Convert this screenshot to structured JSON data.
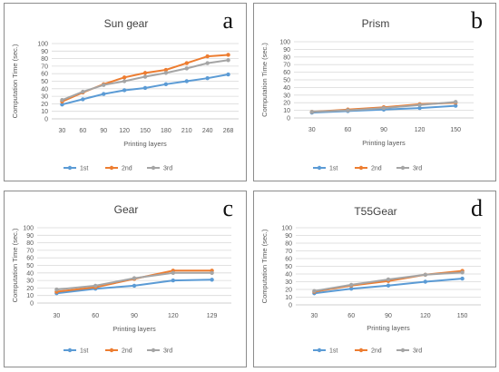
{
  "chart_data": [
    {
      "type": "line",
      "panel_letter": "a",
      "title": "Sun gear",
      "xlabel": "Printing layers",
      "ylabel": "Computation Time (sec.)",
      "ylim": [
        0,
        100
      ],
      "yticks": [
        "0",
        "10",
        "20",
        "30",
        "40",
        "50",
        "60",
        "70",
        "80",
        "90",
        "100"
      ],
      "categories": [
        "30",
        "60",
        "90",
        "120",
        "150",
        "180",
        "210",
        "240",
        "268"
      ],
      "series": [
        {
          "name": "1st",
          "values": [
            19,
            26,
            33,
            38,
            41,
            46,
            50,
            54,
            59
          ]
        },
        {
          "name": "2nd",
          "values": [
            23,
            35,
            46,
            55,
            61,
            65,
            74,
            83,
            85
          ]
        },
        {
          "name": "3rd",
          "values": [
            25,
            36,
            45,
            50,
            56,
            61,
            67,
            74,
            78
          ]
        }
      ]
    },
    {
      "type": "line",
      "panel_letter": "b",
      "title": "Prism",
      "xlabel": "Printing layers",
      "ylabel": "Computation Time (sec.)",
      "ylim": [
        0,
        100
      ],
      "yticks": [
        "0",
        "10",
        "20",
        "30",
        "40",
        "50",
        "60",
        "70",
        "80",
        "90",
        "100"
      ],
      "categories": [
        "30",
        "60",
        "90",
        "120",
        "150"
      ],
      "series": [
        {
          "name": "1st",
          "values": [
            7,
            9,
            11,
            13,
            16
          ]
        },
        {
          "name": "2nd",
          "values": [
            8,
            11,
            14,
            18,
            20
          ]
        },
        {
          "name": "3rd",
          "values": [
            8,
            10,
            13,
            17,
            21
          ]
        }
      ]
    },
    {
      "type": "line",
      "panel_letter": "c",
      "title": "Gear",
      "xlabel": "Printing layers",
      "ylabel": "Computation Time (sec.)",
      "ylim": [
        0,
        100
      ],
      "yticks": [
        "0",
        "10",
        "20",
        "30",
        "40",
        "50",
        "60",
        "70",
        "80",
        "90",
        "100"
      ],
      "categories": [
        "30",
        "60",
        "90",
        "120",
        "129"
      ],
      "series": [
        {
          "name": "1st",
          "values": [
            13,
            19,
            23,
            30,
            31
          ]
        },
        {
          "name": "2nd",
          "values": [
            15,
            21,
            32,
            43,
            43
          ]
        },
        {
          "name": "3rd",
          "values": [
            18,
            23,
            33,
            40,
            40
          ]
        }
      ]
    },
    {
      "type": "line",
      "panel_letter": "d",
      "title": "T55Gear",
      "xlabel": "Printing layers",
      "ylabel": "Computation Time (sec.)",
      "ylim": [
        0,
        100
      ],
      "yticks": [
        "0",
        "10",
        "20",
        "30",
        "40",
        "50",
        "60",
        "70",
        "80",
        "90",
        "100"
      ],
      "categories": [
        "30",
        "60",
        "90",
        "120",
        "150"
      ],
      "series": [
        {
          "name": "1st",
          "values": [
            15,
            21,
            25,
            30,
            34
          ]
        },
        {
          "name": "2nd",
          "values": [
            17,
            25,
            31,
            39,
            44
          ]
        },
        {
          "name": "3rd",
          "values": [
            18,
            26,
            33,
            39,
            42
          ]
        }
      ]
    }
  ],
  "style": {
    "series_colors": [
      "#5b9bd5",
      "#ed7d31",
      "#a5a5a5"
    ],
    "gridline_color": "#d9d9d9",
    "axis_color": "#bfbfbf",
    "text_color": "#595959",
    "marker": "circle"
  }
}
